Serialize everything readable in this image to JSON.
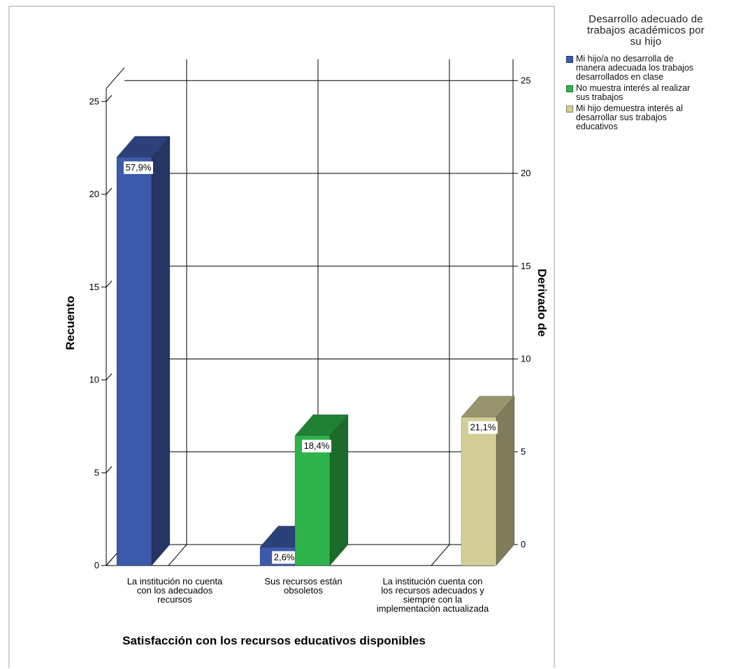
{
  "chart_data": {
    "type": "bar",
    "title": "",
    "xlabel": "Satisfacción con los recursos educativos disponibles",
    "ylabel": "Recuento",
    "ylabel_right": "Derivado de",
    "ylim": [
      0,
      26
    ],
    "ylim_right": [
      0,
      26
    ],
    "y_ticks": [
      "0",
      "5",
      "10",
      "15",
      "20",
      "25"
    ],
    "y_ticks_right": [
      "0",
      "5",
      "10",
      "15",
      "20",
      "25"
    ],
    "categories": [
      "La institución no cuenta con los adecuados recursos",
      "Sus recursos están obsoletos",
      "La institución cuenta con los recursos adecuados y siempre con la implementación actualizada"
    ],
    "category_label_lines": [
      [
        "La institución no cuenta",
        "con los adecuados",
        "recursos"
      ],
      [
        "Sus recursos están",
        "obsoletos"
      ],
      [
        "La institución cuenta con",
        "los recursos adecuados y",
        "siempre con la",
        "implementación actualizada"
      ]
    ],
    "legend_title": "Desarrollo adecuado de trabajos académicos por su hijo",
    "legend_title_lines": [
      "Desarrollo adecuado de",
      "trabajos académicos por",
      "su hijo"
    ],
    "legend_placement": "right",
    "grid": true,
    "series": [
      {
        "name": "Mi hijo/a no desarrolla de manera adecuada los trabajos desarrollados en clase",
        "legend_lines": [
          "Mi hijo/a no desarrolla de",
          "manera adecuada los trabajos",
          "desarrollados en clase"
        ],
        "color": "#3d59a9",
        "values": [
          22,
          1,
          0
        ],
        "labels": [
          "57,9%",
          "2,6%",
          ""
        ]
      },
      {
        "name": "No muestra interés al realizar sus trabajos",
        "legend_lines": [
          "No muestra interés al realizar",
          "sus trabajos"
        ],
        "color": "#2db34a",
        "values": [
          0,
          7,
          0
        ],
        "labels": [
          "",
          "18,4%",
          ""
        ]
      },
      {
        "name": "Mi hijo demuestra interés al desarrollar sus trabajos educativos",
        "legend_lines": [
          "Mi hijo demuestra interés al",
          "desarrollar sus trabajos",
          "educativos"
        ],
        "color": "#d3cd97",
        "values": [
          0,
          0,
          8
        ],
        "labels": [
          "",
          "",
          "21,1%"
        ]
      }
    ]
  }
}
